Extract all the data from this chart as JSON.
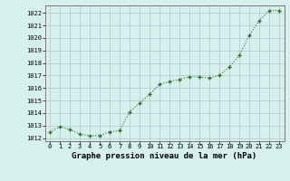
{
  "x": [
    0,
    1,
    2,
    3,
    4,
    5,
    6,
    7,
    8,
    9,
    10,
    11,
    12,
    13,
    14,
    15,
    16,
    17,
    18,
    19,
    20,
    21,
    22,
    23
  ],
  "y": [
    1012.5,
    1012.9,
    1012.7,
    1012.3,
    1012.2,
    1012.2,
    1012.5,
    1012.6,
    1014.1,
    1014.8,
    1015.5,
    1016.3,
    1016.5,
    1016.7,
    1016.9,
    1016.9,
    1016.8,
    1017.0,
    1017.7,
    1018.6,
    1020.2,
    1021.4,
    1022.2,
    1022.2
  ],
  "line_color": "#2d6b2d",
  "marker_color": "#2d6b2d",
  "bg_color": "#d6f0ee",
  "grid_color": "#b0c8c8",
  "xlabel": "Graphe pression niveau de la mer (hPa)",
  "xlabel_fontsize": 6.5,
  "ylim": [
    1011.75,
    1022.6
  ],
  "xlim": [
    -0.5,
    23.5
  ],
  "xtick_labels": [
    "0",
    "1",
    "2",
    "3",
    "4",
    "5",
    "6",
    "7",
    "8",
    "9",
    "10",
    "11",
    "12",
    "13",
    "14",
    "15",
    "16",
    "17",
    "18",
    "19",
    "20",
    "21",
    "22",
    "23"
  ],
  "yticks": [
    1012,
    1013,
    1014,
    1015,
    1016,
    1017,
    1018,
    1019,
    1020,
    1021,
    1022
  ],
  "tick_fontsize": 5.0
}
